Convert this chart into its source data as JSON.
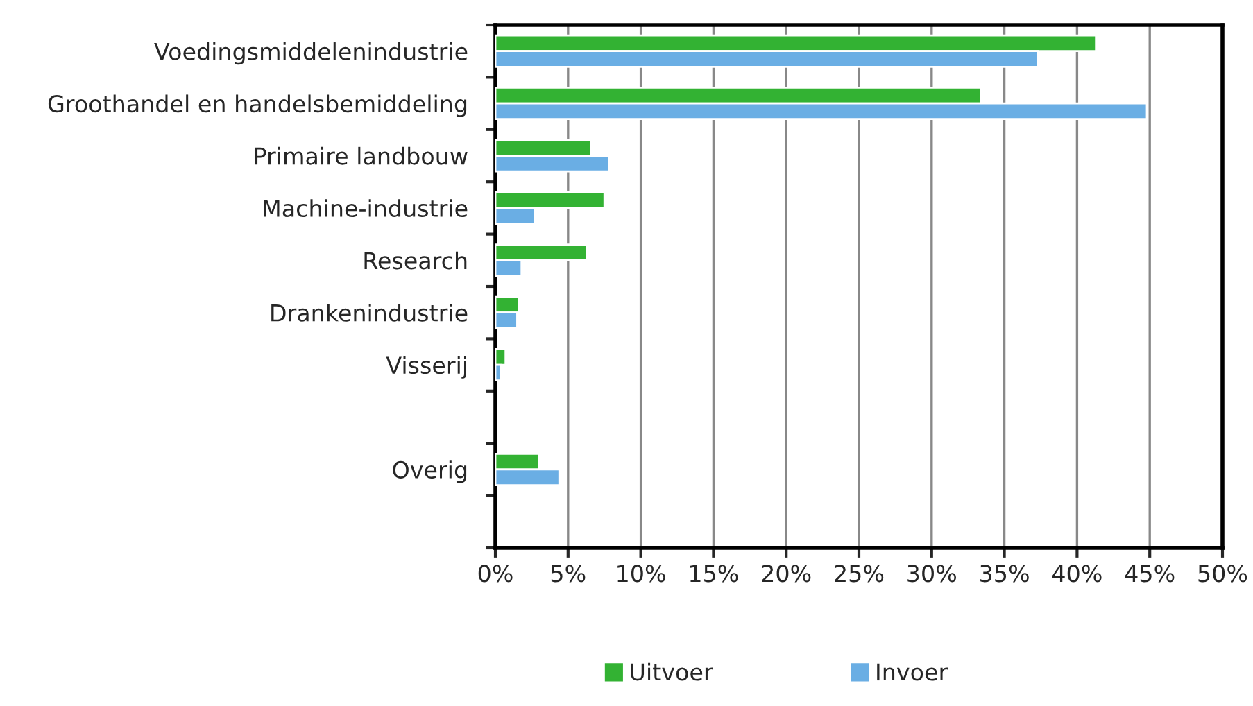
{
  "chart_data": {
    "type": "bar",
    "orientation": "horizontal",
    "categories": [
      "Voedingsmiddelenindustrie",
      "Groothandel en handelsbemiddeling",
      "Primaire landbouw",
      "Machine-industrie",
      "Research",
      "Drankenindustrie",
      "Visserij",
      null,
      "Overig",
      null
    ],
    "series": [
      {
        "name": "Uitvoer",
        "color": "#33b233",
        "values": [
          41.3,
          33.4,
          6.6,
          7.5,
          6.3,
          1.6,
          0.7,
          null,
          3.0,
          null
        ]
      },
      {
        "name": "Invoer",
        "color": "#6aaee4",
        "values": [
          37.3,
          44.8,
          7.8,
          2.7,
          1.8,
          1.5,
          0.4,
          null,
          4.4,
          null
        ]
      }
    ],
    "xlim": [
      0,
      50
    ],
    "xticks": [
      {
        "value": 0,
        "label": "0%"
      },
      {
        "value": 5,
        "label": "5%"
      },
      {
        "value": 10,
        "label": "10%"
      },
      {
        "value": 15,
        "label": "15%"
      },
      {
        "value": 20,
        "label": "20%"
      },
      {
        "value": 25,
        "label": "25%"
      },
      {
        "value": 30,
        "label": "30%"
      },
      {
        "value": 35,
        "label": "35%"
      },
      {
        "value": 40,
        "label": "40%"
      },
      {
        "value": 45,
        "label": "45%"
      },
      {
        "value": 50,
        "label": "50%"
      }
    ],
    "grid": "x",
    "legend": "bottom"
  }
}
